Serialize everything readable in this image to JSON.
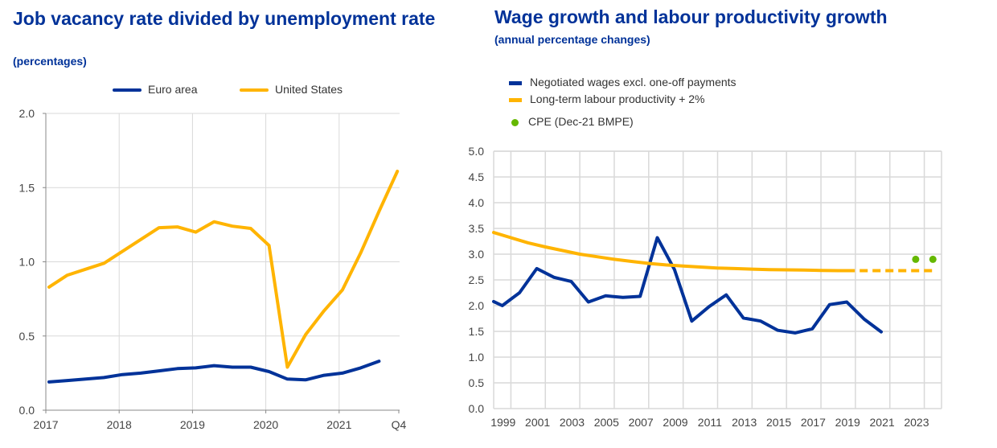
{
  "colors": {
    "title": "#003299",
    "euro_area": "#003299",
    "united_states": "#FFB400",
    "negotiated_wages": "#003299",
    "productivity": "#FFB400",
    "cpe": "#65B800",
    "grid": "#d9d9d9",
    "axis": "#888888"
  },
  "chart_data": [
    {
      "type": "line",
      "title": "Job vacancy rate divided by unemployment rate",
      "subtitle": "(percentages)",
      "xlabel": "",
      "ylabel": "",
      "legend_position": "top-center",
      "x_ticks": [
        "2017",
        "2018",
        "2019",
        "2020",
        "2021",
        "Q4"
      ],
      "y_ticks": [
        "0.0",
        "0.5",
        "1.0",
        "1.5",
        "2.0"
      ],
      "ylim": [
        0,
        2.0
      ],
      "xlim": [
        2017.0,
        2021.82
      ],
      "grid": true,
      "x": [
        2017.0,
        2017.25,
        2017.5,
        2017.75,
        2018.0,
        2018.25,
        2018.5,
        2018.75,
        2019.0,
        2019.25,
        2019.5,
        2019.75,
        2020.0,
        2020.25,
        2020.5,
        2020.75,
        2021.0,
        2021.25,
        2021.5,
        2021.75
      ],
      "series": [
        {
          "name": "Euro area",
          "color_key": "euro_area",
          "values": [
            0.19,
            0.2,
            0.21,
            0.22,
            0.24,
            0.25,
            0.265,
            0.28,
            0.285,
            0.3,
            0.29,
            0.29,
            0.26,
            0.21,
            0.205,
            0.235,
            0.25,
            0.285,
            0.33,
            null
          ]
        },
        {
          "name": "United States",
          "color_key": "united_states",
          "values": [
            0.83,
            0.91,
            0.95,
            0.99,
            1.07,
            1.15,
            1.23,
            1.235,
            1.2,
            1.27,
            1.24,
            1.225,
            1.11,
            0.29,
            0.51,
            0.67,
            0.81,
            1.06,
            1.34,
            1.61
          ]
        }
      ]
    },
    {
      "type": "line",
      "title": "Wage growth and labour productivity growth",
      "subtitle": "(annual percentage changes)",
      "xlabel": "",
      "ylabel": "",
      "legend_position": "top-left",
      "x_ticks": [
        "1999",
        "2001",
        "2003",
        "2005",
        "2007",
        "2009",
        "2011",
        "2013",
        "2015",
        "2017",
        "2019",
        "2021",
        "2023"
      ],
      "y_ticks": [
        "0.0",
        "0.5",
        "1.0",
        "1.5",
        "2.0",
        "2.5",
        "3.0",
        "3.5",
        "4.0",
        "4.5",
        "5.0"
      ],
      "ylim": [
        0,
        5.0
      ],
      "xlim": [
        1999.0,
        2025.0
      ],
      "grid": true,
      "series": [
        {
          "name": "Negotiated wages excl. one-off payments",
          "color_key": "negotiated_wages",
          "style": "solid",
          "x": [
            1999.0,
            1999.5,
            2000.5,
            2001.5,
            2002.5,
            2003.5,
            2004.5,
            2005.5,
            2006.5,
            2007.5,
            2008.5,
            2009.5,
            2010.5,
            2011.5,
            2012.5,
            2013.5,
            2014.5,
            2015.5,
            2016.5,
            2017.5,
            2018.5,
            2019.5,
            2020.5,
            2021.5
          ],
          "values": [
            2.08,
            2.0,
            2.25,
            2.72,
            2.55,
            2.47,
            2.07,
            2.19,
            2.16,
            2.18,
            3.32,
            2.7,
            1.7,
            1.98,
            2.21,
            1.76,
            1.7,
            1.52,
            1.47,
            1.55,
            2.02,
            2.07,
            1.74,
            1.49
          ]
        },
        {
          "name": "Long-term labour productivity + 2%",
          "color_key": "productivity",
          "style": "solid",
          "x": [
            1999.0,
            2000.0,
            2001.0,
            2002.0,
            2003.0,
            2004.0,
            2005.0,
            2006.0,
            2007.0,
            2008.0,
            2009.0,
            2010.0,
            2011.0,
            2012.0,
            2013.0,
            2014.0,
            2015.0,
            2016.0,
            2017.0,
            2018.0,
            2019.0,
            2019.5
          ],
          "values": [
            3.42,
            3.32,
            3.22,
            3.14,
            3.07,
            3.0,
            2.95,
            2.9,
            2.86,
            2.82,
            2.79,
            2.77,
            2.75,
            2.73,
            2.72,
            2.71,
            2.7,
            2.695,
            2.69,
            2.685,
            2.68,
            2.68
          ]
        },
        {
          "name": "Long-term labour productivity + 2% (projection)",
          "color_key": "productivity",
          "style": "dashed",
          "x": [
            2019.5,
            2024.5
          ],
          "values": [
            2.68,
            2.68
          ]
        },
        {
          "name": "CPE (Dec-21 BMPE)",
          "color_key": "cpe",
          "style": "markers",
          "x": [
            2023.5,
            2024.5
          ],
          "values": [
            2.9,
            2.9
          ]
        }
      ]
    }
  ],
  "legend_left": [
    {
      "label": "Euro area",
      "color_key": "euro_area"
    },
    {
      "label": "United States",
      "color_key": "united_states"
    }
  ],
  "legend_right": [
    {
      "label": "Negotiated wages excl. one-off payments",
      "color_key": "negotiated_wages",
      "marker": "line"
    },
    {
      "label": "Long-term labour productivity + 2%",
      "color_key": "productivity",
      "marker": "line"
    },
    {
      "label": "CPE (Dec-21 BMPE)",
      "color_key": "cpe",
      "marker": "dot"
    }
  ]
}
